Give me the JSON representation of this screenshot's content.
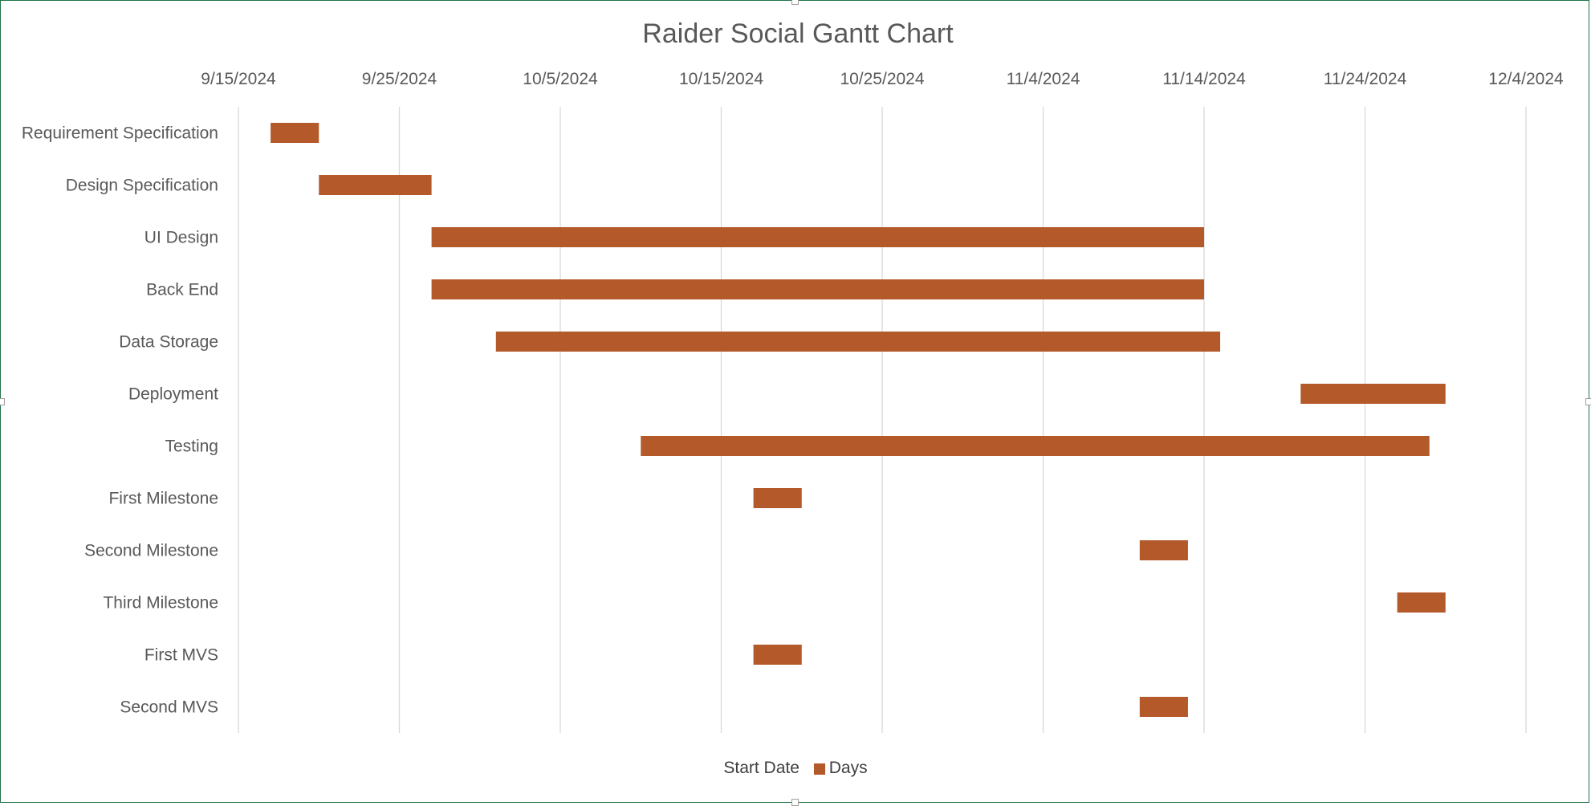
{
  "chart_data": {
    "type": "bar",
    "orientation": "horizontal",
    "stacked": true,
    "title": "Raider Social Gantt Chart",
    "x_axis": {
      "type": "date",
      "position": "top",
      "range": [
        "2024-09-15",
        "2024-12-04"
      ],
      "tick_labels": [
        "9/15/2024",
        "9/25/2024",
        "10/5/2024",
        "10/15/2024",
        "10/25/2024",
        "11/4/2024",
        "11/14/2024",
        "11/24/2024",
        "12/4/2024"
      ],
      "grid": true
    },
    "categories": [
      "Requirement Specification",
      "Design Specification",
      "UI Design",
      "Back End",
      "Data Storage",
      "Deployment",
      "Testing",
      "First Milestone",
      "Second Milestone",
      "Third Milestone",
      "First MVS",
      "Second MVS"
    ],
    "series": [
      {
        "name": "Start Date",
        "visible": false,
        "values": [
          "2024-09-17",
          "2024-09-20",
          "2024-09-27",
          "2024-09-27",
          "2024-10-01",
          "2024-11-20",
          "2024-10-10",
          "2024-10-17",
          "2024-11-10",
          "2024-11-26",
          "2024-10-17",
          "2024-11-10"
        ]
      },
      {
        "name": "Days",
        "color": "#B4592A",
        "values": [
          3,
          7,
          48,
          48,
          45,
          9,
          49,
          3,
          3,
          3,
          3,
          3
        ]
      }
    ],
    "legend_position": "bottom"
  }
}
